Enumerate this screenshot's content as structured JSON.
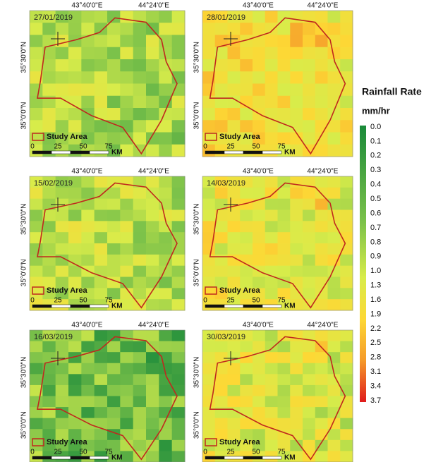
{
  "legend": {
    "title": "Rainfall Rate",
    "unit": "mm/hr",
    "labels": [
      "0.0",
      "0.1",
      "0.2",
      "0.3",
      "0.4",
      "0.5",
      "0.6",
      "0.7",
      "0.8",
      "0.9",
      "1.0",
      "1.3",
      "1.6",
      "1.9",
      "2.2",
      "2.5",
      "2.8",
      "3.1",
      "3.4",
      "3.7"
    ]
  },
  "panels": [
    {
      "date": "27/01/2019",
      "lon_labels": [
        "43°40'0\"E",
        "44°24'0\"E"
      ],
      "lat_labels": [
        "35°30'0\"N",
        "35°0'0\"N"
      ],
      "legend_label": "Study Area",
      "scale_labels": [
        "0",
        "25",
        "50",
        "75"
      ],
      "scale_unit": "KM"
    },
    {
      "date": "28/01/2019",
      "lon_labels": [
        "43°40'0\"E",
        "44°24'0\"E"
      ],
      "lat_labels": [
        "35°30'0\"N",
        "35°0'0\"N"
      ],
      "legend_label": "Study Area",
      "scale_labels": [
        "0",
        "25",
        "50",
        "75"
      ],
      "scale_unit": "KM"
    },
    {
      "date": "15/02/2019",
      "lon_labels": [
        "43°40'0\"E",
        "44°24'0\"E"
      ],
      "lat_labels": [
        "35°30'0\"N",
        "35°0'0\"N"
      ],
      "legend_label": "Study Area",
      "scale_labels": [
        "0",
        "25",
        "50",
        "75"
      ],
      "scale_unit": "KM"
    },
    {
      "date": "14/03/2019",
      "lon_labels": [
        "43°40'0\"E",
        "44°24'0\"E"
      ],
      "lat_labels": [
        "35°30'0\"N",
        "35°0'0\"N"
      ],
      "legend_label": "Study Area",
      "scale_labels": [
        "0",
        "25",
        "50",
        "75"
      ],
      "scale_unit": "KM"
    },
    {
      "date": "16/03/2019",
      "lon_labels": [
        "43°40'0\"E",
        "44°24'0\"E"
      ],
      "lat_labels": [
        "35°30'0\"N",
        "35°0'0\"N"
      ],
      "legend_label": "Study Area",
      "scale_labels": [
        "0",
        "25",
        "50",
        "75"
      ],
      "scale_unit": "KM"
    },
    {
      "date": "30/03/2019",
      "lon_labels": [
        "43°40'0\"E",
        "44°24'0\"E"
      ],
      "lat_labels": [
        "35°30'0\"N",
        "35°0'0\"N"
      ],
      "legend_label": "Study Area",
      "scale_labels": [
        "0",
        "25",
        "50",
        "75"
      ],
      "scale_unit": "KM"
    }
  ]
}
